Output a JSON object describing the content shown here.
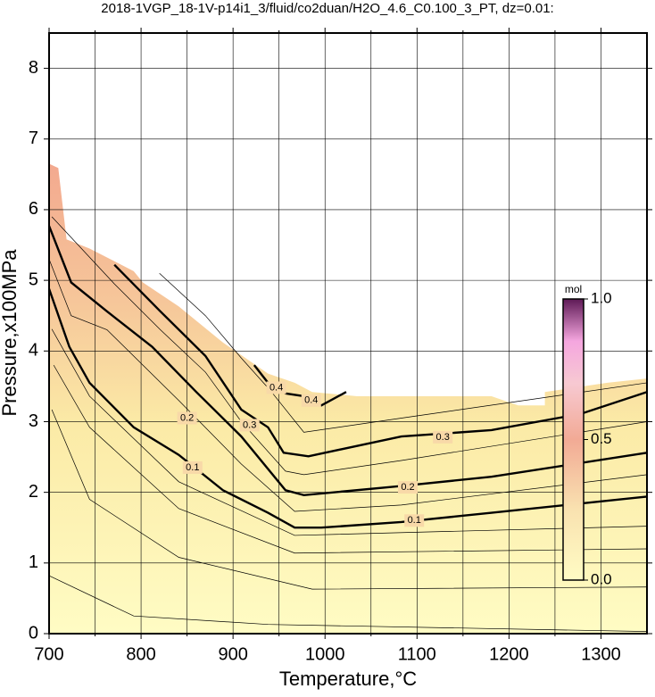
{
  "chart_data": {
    "type": "contour",
    "title": "2018-1VGP_18-1V-p14i1_3/fluid/co2duan/H2O_4.6_C0.100_3_PT, dz=0.01:",
    "xlabel": "Temperature,°C",
    "ylabel": "Pressure,x100MPa",
    "xlim": [
      700,
      1350
    ],
    "ylim": [
      0,
      8.5
    ],
    "xticks": [
      700,
      800,
      900,
      1000,
      1100,
      1200,
      1300
    ],
    "xminorticks": [
      750,
      850,
      950,
      1050,
      1150,
      1250
    ],
    "yticks": [
      0,
      1,
      2,
      3,
      4,
      5,
      6,
      7,
      8
    ],
    "grid": true,
    "region_boundary": {
      "x": [
        700,
        710,
        719,
        744,
        792,
        802,
        841,
        889,
        938,
        967,
        986,
        1035,
        1181,
        1210,
        1239,
        1239,
        1307,
        1350
      ],
      "y": [
        6.65,
        6.59,
        5.58,
        5.45,
        5.13,
        4.97,
        4.63,
        4.12,
        3.68,
        3.55,
        3.42,
        3.36,
        3.36,
        3.23,
        3.23,
        3.42,
        3.55,
        3.61
      ]
    },
    "contours": [
      {
        "level": 0.01,
        "x": [
          700,
          792,
          938,
          1350
        ],
        "y": [
          0.82,
          0.25,
          0.13,
          0.03
        ]
      },
      {
        "level": 0.03,
        "x": [
          703,
          744,
          841,
          986,
          1350
        ],
        "y": [
          3.17,
          1.9,
          1.08,
          0.63,
          0.66
        ]
      },
      {
        "level": 0.05,
        "x": [
          705,
          744,
          841,
          967,
          1350
        ],
        "y": [
          3.8,
          2.92,
          1.77,
          1.14,
          1.2
        ]
      },
      {
        "level": 0.07,
        "x": [
          703,
          744,
          841,
          967,
          1350
        ],
        "y": [
          4.31,
          3.36,
          2.15,
          1.39,
          1.52
        ]
      },
      {
        "level": 0.1,
        "bold": true,
        "x": [
          700,
          722,
          744,
          792,
          841,
          889,
          938,
          967,
          996,
          1083,
          1181,
          1350
        ],
        "y": [
          4.88,
          4.06,
          3.55,
          2.92,
          2.53,
          2.03,
          1.71,
          1.5,
          1.5,
          1.58,
          1.71,
          1.94
        ],
        "label_at": [
          [
            856,
            2.35
          ],
          [
            1097,
            1.6
          ]
        ]
      },
      {
        "level": 0.15,
        "x": [
          700,
          724,
          763,
          841,
          909,
          967,
          1083,
          1350
        ],
        "y": [
          5.3,
          4.5,
          4.3,
          3.3,
          2.4,
          1.73,
          1.82,
          2.25
        ]
      },
      {
        "level": 0.2,
        "bold": true,
        "x": [
          700,
          724,
          763,
          812,
          860,
          909,
          957,
          977,
          1083,
          1181,
          1350
        ],
        "y": [
          5.77,
          4.97,
          4.56,
          4.06,
          3.42,
          2.79,
          2.03,
          1.96,
          2.09,
          2.22,
          2.56
        ],
        "label_at": [
          [
            850,
            3.05
          ],
          [
            1090,
            2.07
          ]
        ]
      },
      {
        "level": 0.25,
        "x": [
          703,
          771,
          821,
          870,
          909,
          957,
          977,
          1083,
          1350
        ],
        "y": [
          5.9,
          4.95,
          4.3,
          3.7,
          3.0,
          2.3,
          2.25,
          2.45,
          3.0
        ]
      },
      {
        "level": 0.3,
        "bold": true,
        "x": [
          771,
          821,
          870,
          909,
          938,
          955,
          982,
          1083,
          1181,
          1278,
          1350
        ],
        "y": [
          5.22,
          4.56,
          3.93,
          3.17,
          2.92,
          2.56,
          2.51,
          2.79,
          2.88,
          3.11,
          3.42
        ],
        "label_at": [
          [
            918,
            2.95
          ],
          [
            1128,
            2.78
          ]
        ]
      },
      {
        "level": 0.35,
        "x": [
          820,
          870,
          909,
          940,
          977,
          1083,
          1350
        ],
        "y": [
          5.1,
          4.5,
          3.9,
          3.45,
          2.85,
          3.05,
          3.55
        ]
      },
      {
        "level": 0.4,
        "bold": true,
        "x": [
          923,
          938,
          957,
          977,
          996,
          1023
        ],
        "y": [
          3.8,
          3.55,
          3.4,
          3.36,
          3.23,
          3.42
        ],
        "label_at": [
          [
            947,
            3.48
          ],
          [
            985,
            3.3
          ]
        ]
      }
    ],
    "colorbar": {
      "label": "mol",
      "lim": [
        0,
        1
      ],
      "ticks": [
        {
          "value": 0,
          "label": "0.0"
        },
        {
          "value": 0.5,
          "label": "0.5"
        },
        {
          "value": 1,
          "label": "1.0"
        }
      ]
    }
  }
}
